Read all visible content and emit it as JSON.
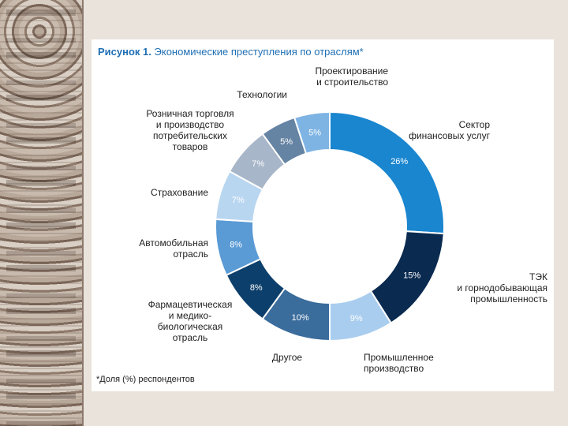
{
  "chart_data": {
    "type": "pie",
    "title_prefix": "Рисунок 1.",
    "title": "Экономические преступления по отраслям*",
    "footnote": "*Доля (%) респондентов",
    "slices": [
      {
        "label": [
          "Сектор",
          "финансовых услуг"
        ],
        "value": 26,
        "value_label": "26%",
        "color": "#1a86cf",
        "text_color": "#ffffff"
      },
      {
        "label": [
          "ТЭК",
          "и горнодобывающая",
          "промышленность"
        ],
        "value": 15,
        "value_label": "15%",
        "color": "#0a2a50",
        "text_color": "#ffffff"
      },
      {
        "label": [
          "Промышленное",
          "производство"
        ],
        "value": 9,
        "value_label": "9%",
        "color": "#a9cdee",
        "text_color": "#ffffff"
      },
      {
        "label": [
          "Другое"
        ],
        "value": 10,
        "value_label": "10%",
        "color": "#3a6c9c",
        "text_color": "#ffffff"
      },
      {
        "label": [
          "Фармацевтическая",
          "и медико-",
          "биологическая",
          "отрасль"
        ],
        "value": 8,
        "value_label": "8%",
        "color": "#0c3f6b",
        "text_color": "#ffffff"
      },
      {
        "label": [
          "Автомобильная",
          "отрасль"
        ],
        "value": 8,
        "value_label": "8%",
        "color": "#5a9ad5",
        "text_color": "#ffffff"
      },
      {
        "label": [
          "Страхование"
        ],
        "value": 7,
        "value_label": "7%",
        "color": "#b9d6f1",
        "text_color": "#ffffff"
      },
      {
        "label": [
          "Розничная торговля",
          "и производство",
          "потребительских",
          "товаров"
        ],
        "value": 7,
        "value_label": "7%",
        "color": "#a7b6c8",
        "text_color": "#ffffff"
      },
      {
        "label": [
          "Технологии"
        ],
        "value": 5,
        "value_label": "5%",
        "color": "#6583a3",
        "text_color": "#ffffff"
      },
      {
        "label": [
          "Проектирование",
          "и строительство"
        ],
        "value": 5,
        "value_label": "5%",
        "color": "#7eb4e4",
        "text_color": "#ffffff"
      }
    ]
  }
}
